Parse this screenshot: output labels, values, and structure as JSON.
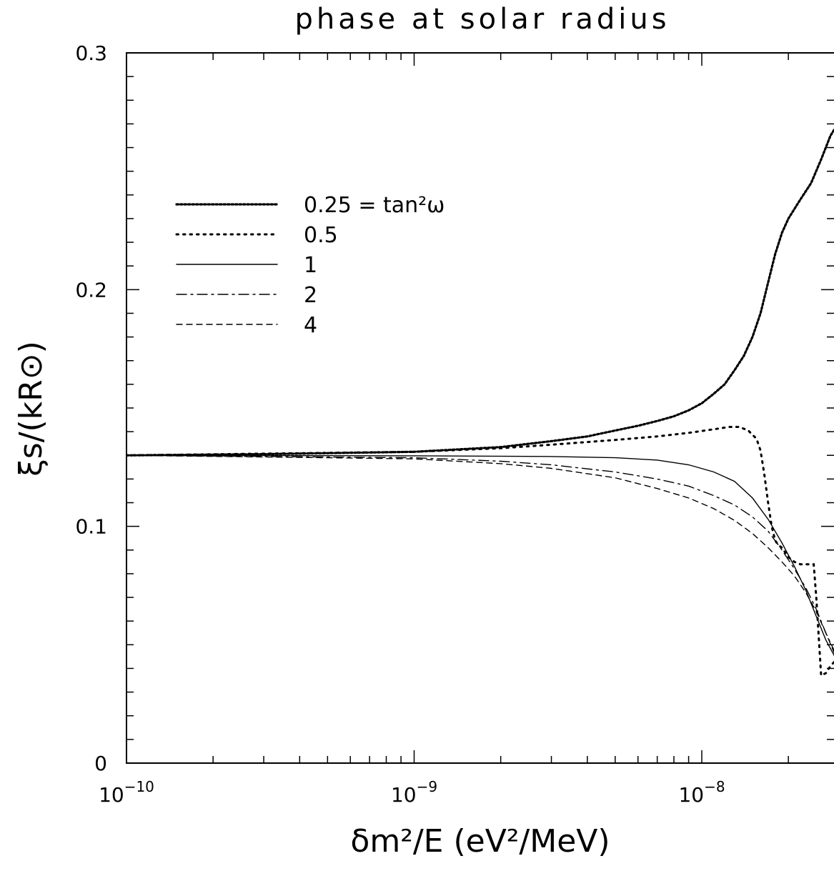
{
  "chart_data": {
    "type": "line",
    "title": "phase at solar radius",
    "xlabel": "δm²/E  (eV²/MeV)",
    "ylabel": "ξs/(kR⊙)",
    "xscale": "log",
    "xlim": [
      1e-10,
      2.9e-08
    ],
    "ylim": [
      0,
      0.3
    ],
    "x_ticks": [
      {
        "base": "10",
        "exp": "−10"
      },
      {
        "base": "10",
        "exp": "−9"
      },
      {
        "base": "10",
        "exp": "−8"
      }
    ],
    "y_ticks": [
      "0",
      "0.1",
      "0.2",
      "0.3"
    ],
    "legend_position": "upper-left",
    "series": [
      {
        "name": "0.25 = tan²ω",
        "style": "dotted-dense",
        "x": [
          1e-10,
          3e-10,
          1e-09,
          2e-09,
          3e-09,
          4e-09,
          5e-09,
          6e-09,
          7e-09,
          8e-09,
          9e-09,
          1e-08,
          1.1e-08,
          1.2e-08,
          1.3e-08,
          1.4e-08,
          1.5e-08,
          1.6e-08,
          1.7e-08,
          1.8e-08,
          1.9e-08,
          2e-08,
          2.2e-08,
          2.4e-08,
          2.6e-08,
          2.8e-08,
          2.9e-08
        ],
        "y": [
          0.13,
          0.1305,
          0.1315,
          0.1335,
          0.136,
          0.138,
          0.1405,
          0.1425,
          0.1445,
          0.1465,
          0.149,
          0.152,
          0.156,
          0.16,
          0.166,
          0.172,
          0.18,
          0.19,
          0.203,
          0.215,
          0.224,
          0.23,
          0.238,
          0.245,
          0.255,
          0.265,
          0.268
        ]
      },
      {
        "name": "0.5",
        "style": "dotted-sparse",
        "x": [
          1e-10,
          1e-09,
          2e-09,
          3e-09,
          5e-09,
          7e-09,
          9e-09,
          1.1e-08,
          1.25e-08,
          1.35e-08,
          1.45e-08,
          1.55e-08,
          1.6e-08,
          1.65e-08,
          1.7e-08,
          1.75e-08,
          1.8e-08,
          1.85e-08,
          1.9e-08,
          2e-08,
          2.1e-08,
          2.2e-08,
          2.3e-08,
          2.4e-08,
          2.45e-08,
          2.5e-08,
          2.6e-08,
          2.7e-08,
          2.8e-08,
          2.9e-08
        ],
        "y": [
          0.13,
          0.1315,
          0.133,
          0.1345,
          0.1365,
          0.138,
          0.1395,
          0.141,
          0.142,
          0.142,
          0.1405,
          0.137,
          0.132,
          0.122,
          0.11,
          0.1,
          0.094,
          0.092,
          0.091,
          0.087,
          0.085,
          0.084,
          0.084,
          0.084,
          0.084,
          0.07,
          0.037,
          0.038,
          0.041,
          0.043
        ]
      },
      {
        "name": "1",
        "style": "solid",
        "x": [
          1e-10,
          1e-09,
          3e-09,
          5e-09,
          7e-09,
          9e-09,
          1.1e-08,
          1.3e-08,
          1.5e-08,
          1.7e-08,
          1.9e-08,
          2.1e-08,
          2.3e-08,
          2.5e-08,
          2.7e-08,
          2.9e-08
        ],
        "y": [
          0.13,
          0.1298,
          0.1295,
          0.129,
          0.128,
          0.126,
          0.123,
          0.119,
          0.112,
          0.103,
          0.093,
          0.083,
          0.073,
          0.062,
          0.052,
          0.045
        ]
      },
      {
        "name": "2",
        "style": "dash-dot",
        "x": [
          1e-10,
          1e-09,
          2e-09,
          3e-09,
          5e-09,
          7e-09,
          9e-09,
          1.1e-08,
          1.3e-08,
          1.5e-08,
          1.7e-08,
          1.9e-08,
          2.1e-08,
          2.3e-08,
          2.5e-08,
          2.7e-08,
          2.9e-08
        ],
        "y": [
          0.13,
          0.129,
          0.1275,
          0.126,
          0.123,
          0.12,
          0.117,
          0.113,
          0.109,
          0.104,
          0.098,
          0.09,
          0.082,
          0.074,
          0.065,
          0.055,
          0.047
        ]
      },
      {
        "name": "4",
        "style": "dashed",
        "x": [
          1e-10,
          5e-10,
          1e-09,
          2e-09,
          3e-09,
          5e-09,
          7e-09,
          9e-09,
          1.1e-08,
          1.3e-08,
          1.5e-08,
          1.7e-08,
          1.9e-08,
          2.1e-08,
          2.3e-08,
          2.5e-08,
          2.7e-08,
          2.9e-08
        ],
        "y": [
          0.13,
          0.129,
          0.1285,
          0.1265,
          0.1245,
          0.1205,
          0.116,
          0.112,
          0.1075,
          0.1025,
          0.097,
          0.091,
          0.085,
          0.079,
          0.072,
          0.064,
          0.055,
          0.046
        ]
      }
    ]
  }
}
